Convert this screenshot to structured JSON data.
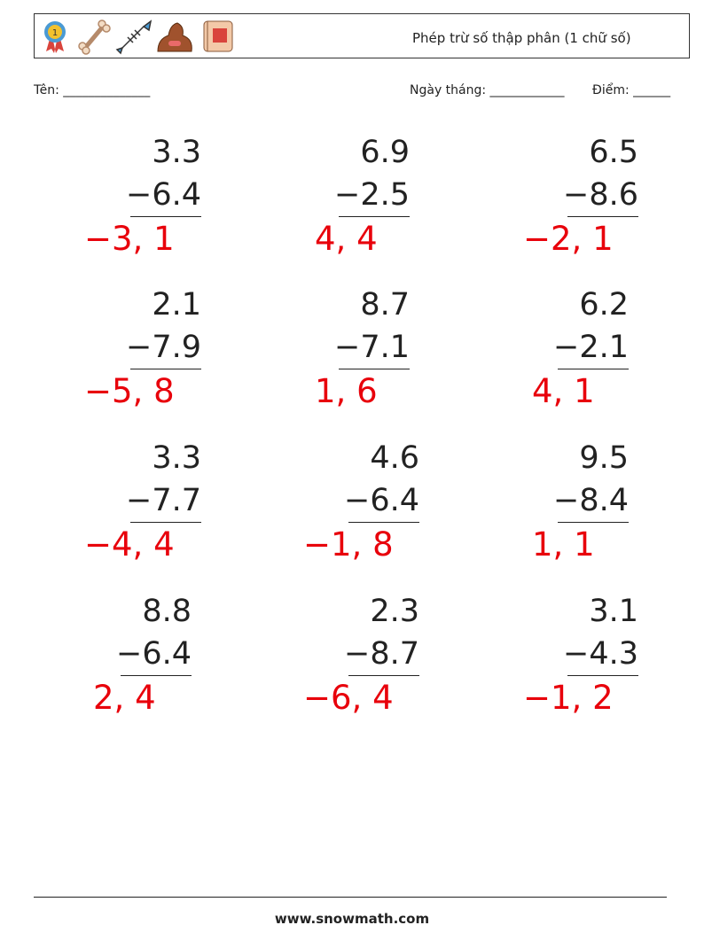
{
  "header": {
    "title": "Phép trừ số thập phân (1 chữ số)"
  },
  "fields": {
    "name": "Tên: ______________",
    "date": "Ngày tháng: ____________",
    "score": "Điểm: ______"
  },
  "problems": [
    {
      "top": "3.3",
      "bottom": "−6.4",
      "answer": "−3, 1"
    },
    {
      "top": "6.9",
      "bottom": "−2.5",
      "answer": "4, 4"
    },
    {
      "top": "6.5",
      "bottom": "−8.6",
      "answer": "−2, 1"
    },
    {
      "top": "2.1",
      "bottom": "−7.9",
      "answer": "−5, 8"
    },
    {
      "top": "8.7",
      "bottom": "−7.1",
      "answer": "1, 6"
    },
    {
      "top": "6.2",
      "bottom": "−2.1",
      "answer": "4, 1"
    },
    {
      "top": "3.3",
      "bottom": "−7.7",
      "answer": "−4, 4"
    },
    {
      "top": "4.6",
      "bottom": "−6.4",
      "answer": "−1, 8"
    },
    {
      "top": "9.5",
      "bottom": "−8.4",
      "answer": "1, 1"
    },
    {
      "top": "8.8",
      "bottom": "−6.4",
      "answer": "2, 4"
    },
    {
      "top": "2.3",
      "bottom": "−8.7",
      "answer": "−6, 4"
    },
    {
      "top": "3.1",
      "bottom": "−4.3",
      "answer": "−1, 2"
    }
  ],
  "footer": "www.snowmath.com"
}
